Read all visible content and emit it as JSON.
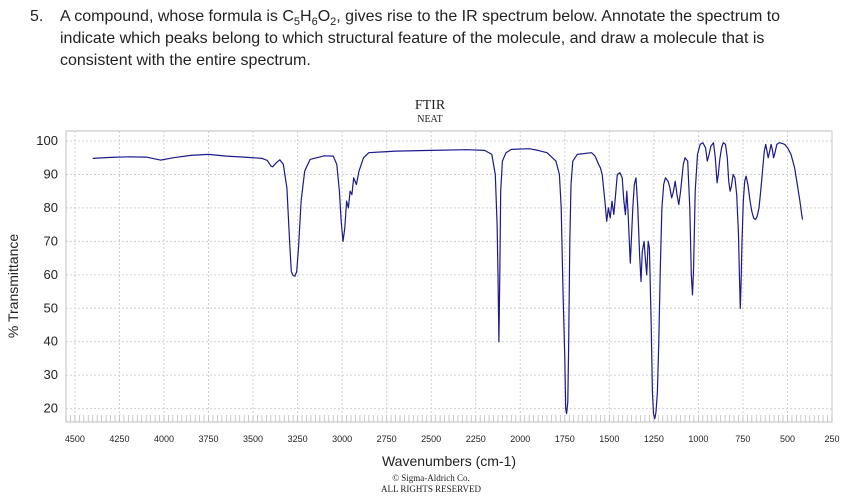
{
  "question": {
    "number": "5.",
    "text_before": "A compound, whose formula is C",
    "sub1": "5",
    "mid1": "H",
    "sub2": "6",
    "mid2": "O",
    "sub3": "2",
    "text_after": ", gives rise to the IR spectrum below. Annotate the spectrum to indicate which peaks belong to which structural feature of the molecule, and draw a molecule that is consistent with the entire spectrum."
  },
  "chart_data": {
    "type": "line",
    "title": "FTIR",
    "subtitle": "NEAT",
    "xlabel": "Wavenumbers (cm-1)",
    "ylabel": "% Transmittance",
    "xlim": [
      4550,
      250
    ],
    "ylim": [
      16,
      103
    ],
    "x_ticks": [
      4500,
      4250,
      4000,
      3750,
      3500,
      3250,
      3000,
      2750,
      2500,
      2250,
      2000,
      1750,
      1500,
      1250,
      1000,
      750,
      500,
      250
    ],
    "y_ticks": [
      20,
      30,
      40,
      50,
      60,
      70,
      80,
      90,
      100
    ],
    "grid": true,
    "line_color": "#1a1a8c",
    "copyright_line1": "© Sigma-Aldrich Co.",
    "copyright_line2": "ALL RIGHTS RESERVED",
    "series": [
      {
        "values": [
          [
            4400,
            94.8
          ],
          [
            4300,
            95.1
          ],
          [
            4200,
            95.3
          ],
          [
            4100,
            95.2
          ],
          [
            4020,
            94.3
          ],
          [
            3950,
            95.0
          ],
          [
            3850,
            95.7
          ],
          [
            3750,
            96.0
          ],
          [
            3650,
            95.5
          ],
          [
            3550,
            95.2
          ],
          [
            3450,
            94.8
          ],
          [
            3420,
            94.2
          ],
          [
            3400,
            92.5
          ],
          [
            3390,
            92.3
          ],
          [
            3370,
            93.5
          ],
          [
            3350,
            94.4
          ],
          [
            3330,
            93.0
          ],
          [
            3310,
            86.0
          ],
          [
            3295,
            70.0
          ],
          [
            3285,
            61.0
          ],
          [
            3275,
            59.8
          ],
          [
            3265,
            59.6
          ],
          [
            3255,
            61.0
          ],
          [
            3245,
            68.0
          ],
          [
            3230,
            82.0
          ],
          [
            3210,
            91.0
          ],
          [
            3180,
            94.5
          ],
          [
            3100,
            95.6
          ],
          [
            3050,
            95.5
          ],
          [
            3030,
            93.0
          ],
          [
            3015,
            85.0
          ],
          [
            3005,
            76.0
          ],
          [
            2995,
            70.0
          ],
          [
            2985,
            74.0
          ],
          [
            2975,
            82.0
          ],
          [
            2965,
            80.0
          ],
          [
            2955,
            85.0
          ],
          [
            2945,
            84.0
          ],
          [
            2935,
            89.0
          ],
          [
            2920,
            87.0
          ],
          [
            2905,
            91.0
          ],
          [
            2880,
            95.0
          ],
          [
            2850,
            96.5
          ],
          [
            2700,
            97.0
          ],
          [
            2500,
            97.2
          ],
          [
            2300,
            97.4
          ],
          [
            2200,
            97.2
          ],
          [
            2160,
            96.0
          ],
          [
            2140,
            90.0
          ],
          [
            2130,
            75.0
          ],
          [
            2125,
            60.0
          ],
          [
            2120,
            40.0
          ],
          [
            2115,
            60.0
          ],
          [
            2110,
            85.0
          ],
          [
            2100,
            94.0
          ],
          [
            2080,
            96.5
          ],
          [
            2050,
            97.5
          ],
          [
            1950,
            97.7
          ],
          [
            1900,
            97.2
          ],
          [
            1850,
            96.5
          ],
          [
            1800,
            94.0
          ],
          [
            1780,
            90.0
          ],
          [
            1770,
            80.0
          ],
          [
            1760,
            55.0
          ],
          [
            1750,
            35.0
          ],
          [
            1745,
            20.0
          ],
          [
            1740,
            18.5
          ],
          [
            1733,
            22.0
          ],
          [
            1728,
            40.0
          ],
          [
            1722,
            70.0
          ],
          [
            1715,
            87.0
          ],
          [
            1705,
            94.0
          ],
          [
            1680,
            96.0
          ],
          [
            1600,
            96.5
          ],
          [
            1580,
            95.5
          ],
          [
            1560,
            93.0
          ],
          [
            1550,
            92.0
          ],
          [
            1540,
            90.0
          ],
          [
            1525,
            82.0
          ],
          [
            1515,
            76.0
          ],
          [
            1505,
            80.0
          ],
          [
            1495,
            77.0
          ],
          [
            1485,
            82.0
          ],
          [
            1475,
            78.0
          ],
          [
            1465,
            84.0
          ],
          [
            1455,
            90.0
          ],
          [
            1440,
            90.5
          ],
          [
            1428,
            89.0
          ],
          [
            1418,
            82.0
          ],
          [
            1410,
            78.0
          ],
          [
            1402,
            85.0
          ],
          [
            1395,
            79.0
          ],
          [
            1388,
            70.0
          ],
          [
            1382,
            63.5
          ],
          [
            1375,
            72.0
          ],
          [
            1368,
            80.0
          ],
          [
            1360,
            87.0
          ],
          [
            1350,
            89.0
          ],
          [
            1340,
            80.0
          ],
          [
            1330,
            66.0
          ],
          [
            1322,
            58.0
          ],
          [
            1315,
            67.0
          ],
          [
            1305,
            70.0
          ],
          [
            1298,
            65.0
          ],
          [
            1290,
            60.0
          ],
          [
            1282,
            70.0
          ],
          [
            1275,
            68.0
          ],
          [
            1265,
            45.0
          ],
          [
            1258,
            25.0
          ],
          [
            1252,
            18.5
          ],
          [
            1245,
            17.0
          ],
          [
            1238,
            19.0
          ],
          [
            1230,
            25.0
          ],
          [
            1222,
            40.0
          ],
          [
            1214,
            62.0
          ],
          [
            1205,
            80.0
          ],
          [
            1195,
            87.0
          ],
          [
            1185,
            89.0
          ],
          [
            1170,
            88.0
          ],
          [
            1160,
            86.0
          ],
          [
            1150,
            83.0
          ],
          [
            1140,
            85.0
          ],
          [
            1130,
            88.0
          ],
          [
            1120,
            84.0
          ],
          [
            1110,
            81.0
          ],
          [
            1100,
            85.0
          ],
          [
            1085,
            93.0
          ],
          [
            1075,
            95.0
          ],
          [
            1060,
            94.0
          ],
          [
            1048,
            80.0
          ],
          [
            1040,
            60.0
          ],
          [
            1033,
            54.0
          ],
          [
            1027,
            62.0
          ],
          [
            1018,
            85.0
          ],
          [
            1005,
            96.0
          ],
          [
            990,
            99.0
          ],
          [
            975,
            99.5
          ],
          [
            960,
            98.0
          ],
          [
            950,
            94.0
          ],
          [
            940,
            96.0
          ],
          [
            930,
            98.5
          ],
          [
            915,
            99.5
          ],
          [
            905,
            95.0
          ],
          [
            895,
            87.5
          ],
          [
            888,
            90.0
          ],
          [
            880,
            94.5
          ],
          [
            870,
            98.0
          ],
          [
            860,
            99.5
          ],
          [
            848,
            99.0
          ],
          [
            838,
            95.0
          ],
          [
            830,
            88.0
          ],
          [
            822,
            85.0
          ],
          [
            815,
            86.5
          ],
          [
            805,
            90.0
          ],
          [
            795,
            89.0
          ],
          [
            785,
            84.0
          ],
          [
            775,
            72.0
          ],
          [
            770,
            60.0
          ],
          [
            765,
            50.0
          ],
          [
            760,
            58.0
          ],
          [
            755,
            70.0
          ],
          [
            748,
            82.0
          ],
          [
            740,
            88.0
          ],
          [
            732,
            89.5
          ],
          [
            722,
            87.0
          ],
          [
            710,
            82.0
          ],
          [
            700,
            79.0
          ],
          [
            690,
            77.0
          ],
          [
            680,
            76.5
          ],
          [
            670,
            77.5
          ],
          [
            660,
            80.0
          ],
          [
            650,
            85.0
          ],
          [
            640,
            91.0
          ],
          [
            630,
            97.0
          ],
          [
            622,
            99.0
          ],
          [
            615,
            97.0
          ],
          [
            608,
            95.0
          ],
          [
            600,
            97.0
          ],
          [
            592,
            99.0
          ],
          [
            585,
            97.5
          ],
          [
            578,
            95.0
          ],
          [
            570,
            96.5
          ],
          [
            560,
            99.0
          ],
          [
            545,
            99.5
          ],
          [
            530,
            99.3
          ],
          [
            515,
            99.0
          ],
          [
            500,
            98.0
          ],
          [
            480,
            96.0
          ],
          [
            460,
            92.0
          ],
          [
            445,
            87.0
          ],
          [
            430,
            82.0
          ],
          [
            420,
            78.0
          ],
          [
            415,
            76.5
          ]
        ]
      }
    ]
  }
}
